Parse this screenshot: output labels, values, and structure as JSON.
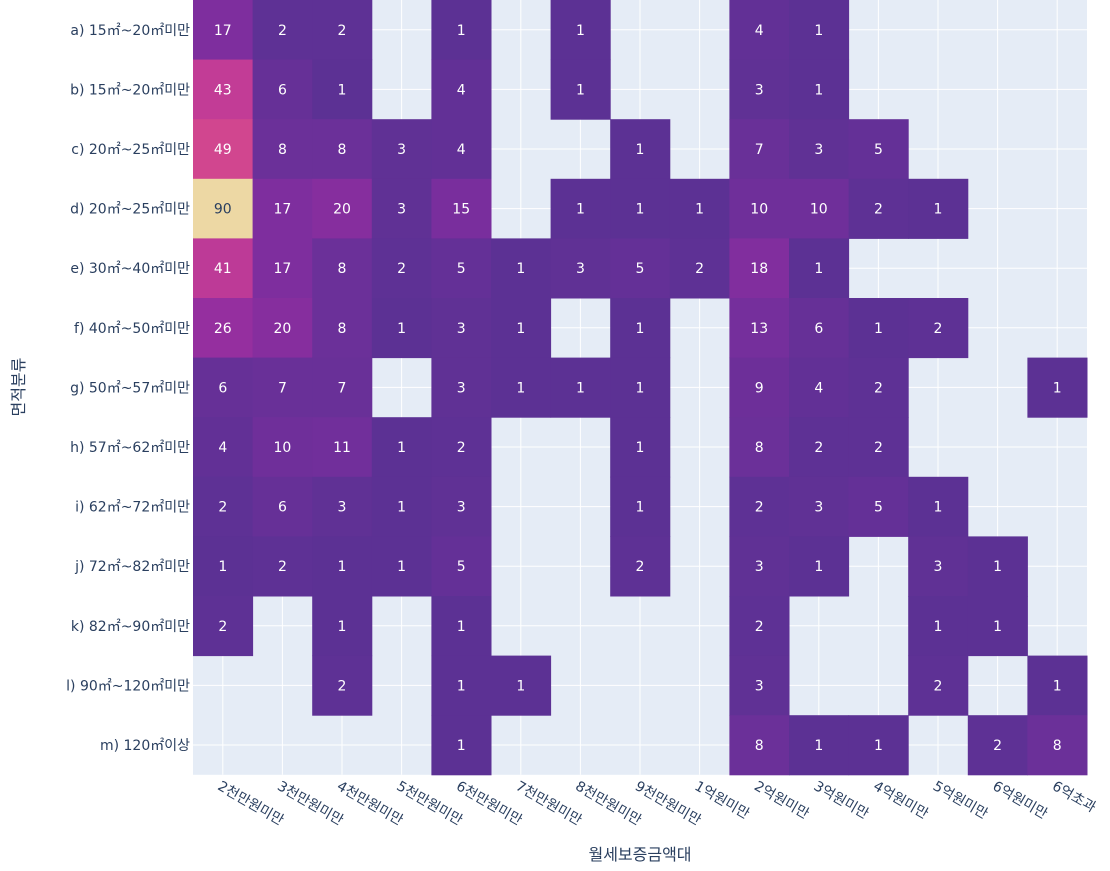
{
  "chart_data": {
    "type": "heatmap",
    "xlabel": "월세보증금액대",
    "ylabel": "면적분류",
    "x_categories": [
      "2천만원미만",
      "3천만원미만",
      "4천만원미만",
      "5천만원미만",
      "6천만원미만",
      "7천만원미만",
      "8천만원미만",
      "9천만원미만",
      "1억원미만",
      "2억원미만",
      "3억원미만",
      "4억원미만",
      "5억원미만",
      "6억원미만",
      "6억초과"
    ],
    "y_categories": [
      "a) 15㎡~20㎡미만",
      "b) 15㎡~20㎡미만",
      "c) 20㎡~25㎡미만",
      "d) 20㎡~25㎡미만",
      "e) 30㎡~40㎡미만",
      "f) 40㎡~50㎡미만",
      "g) 50㎡~57㎡미만",
      "h) 57㎡~62㎡미만",
      "i) 62㎡~72㎡미만",
      "j) 72㎡~82㎡미만",
      "k) 82㎡~90㎡미만",
      "l) 90㎡~120㎡미만",
      "m) 120㎡이상"
    ],
    "z": [
      [
        17,
        2,
        2,
        null,
        1,
        null,
        1,
        null,
        null,
        4,
        1,
        null,
        null,
        null,
        null
      ],
      [
        43,
        6,
        1,
        null,
        4,
        null,
        1,
        null,
        null,
        3,
        1,
        null,
        null,
        null,
        null
      ],
      [
        49,
        8,
        8,
        3,
        4,
        null,
        null,
        1,
        null,
        7,
        3,
        5,
        null,
        null,
        null
      ],
      [
        90,
        17,
        20,
        3,
        15,
        null,
        1,
        1,
        1,
        10,
        10,
        2,
        1,
        null,
        null
      ],
      [
        41,
        17,
        8,
        2,
        5,
        1,
        3,
        5,
        2,
        18,
        1,
        null,
        null,
        null,
        null
      ],
      [
        26,
        20,
        8,
        1,
        3,
        1,
        null,
        1,
        null,
        13,
        6,
        1,
        2,
        null,
        null
      ],
      [
        6,
        7,
        7,
        null,
        3,
        1,
        1,
        1,
        null,
        9,
        4,
        2,
        null,
        null,
        1
      ],
      [
        4,
        10,
        11,
        1,
        2,
        null,
        null,
        1,
        null,
        8,
        2,
        2,
        null,
        null,
        null
      ],
      [
        2,
        6,
        3,
        1,
        3,
        null,
        null,
        1,
        null,
        2,
        3,
        5,
        1,
        null,
        null
      ],
      [
        1,
        2,
        1,
        1,
        5,
        null,
        null,
        2,
        null,
        3,
        1,
        null,
        3,
        1,
        null
      ],
      [
        2,
        null,
        1,
        null,
        1,
        null,
        null,
        null,
        null,
        2,
        null,
        null,
        1,
        1,
        null
      ],
      [
        null,
        null,
        2,
        null,
        1,
        1,
        null,
        null,
        null,
        3,
        null,
        null,
        2,
        null,
        1
      ],
      [
        null,
        null,
        null,
        null,
        1,
        null,
        null,
        null,
        null,
        8,
        1,
        1,
        null,
        2,
        8
      ]
    ],
    "zrange": [
      1,
      90
    ],
    "colorscale": [
      "#5c3194",
      "#7b2e9e",
      "#a12f9f",
      "#c93f94",
      "#e95c80",
      "#f79f89",
      "#edd8a4"
    ],
    "grid": true,
    "plot_bg": "#e5ecf6",
    "grid_color": "#ffffff",
    "text_color_light": "#ffffff",
    "text_color_dark": "#2a3f5f"
  }
}
